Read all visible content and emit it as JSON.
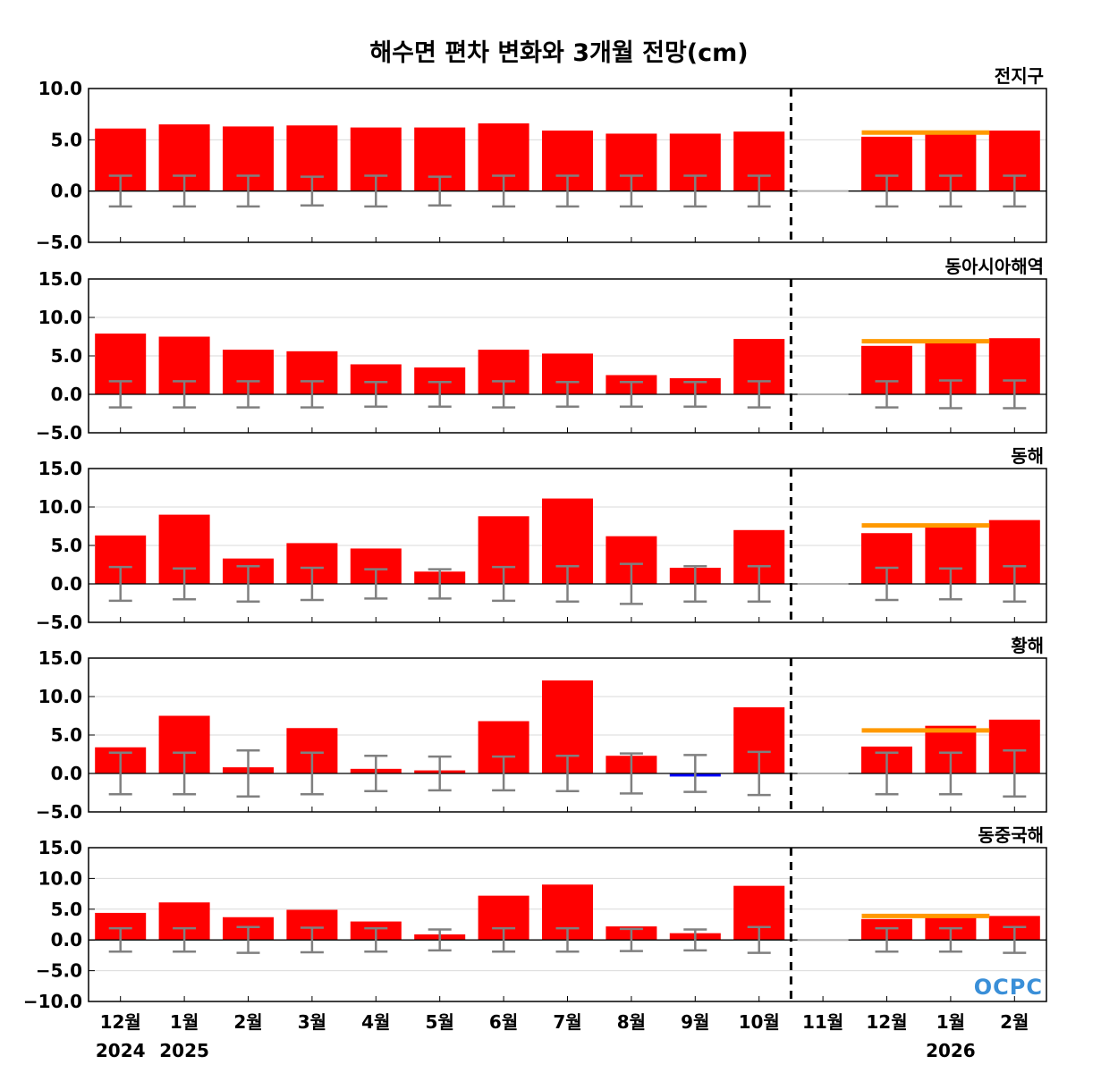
{
  "chart_data": {
    "type": "bar",
    "title": "해수면 편차 변화와 3개월 전망(cm)",
    "months": [
      "12월",
      "1월",
      "2월",
      "3월",
      "4월",
      "5월",
      "6월",
      "7월",
      "8월",
      "9월",
      "10월",
      "11월",
      "12월",
      "1월",
      "2월"
    ],
    "year_labels": [
      {
        "index": 0,
        "label": "2024"
      },
      {
        "index": 1,
        "label": "2025"
      },
      {
        "index": 13,
        "label": "2026"
      }
    ],
    "divider_index": 11,
    "colors": {
      "positive": "#ff0000",
      "negative": "#0000ff",
      "outlook": "#ff9900",
      "errorbar": "#808080",
      "divider": "#000000",
      "grid": "#d9d9d9"
    },
    "panels": [
      {
        "region": "전지구",
        "ylim": [
          -5,
          10
        ],
        "yticks": [
          "10.0",
          "5.0",
          "0.0",
          "−5.0"
        ],
        "ytick_values": [
          10,
          5,
          0,
          -5
        ],
        "values": [
          6.1,
          6.5,
          6.3,
          6.4,
          6.2,
          6.2,
          6.6,
          5.9,
          5.6,
          5.6,
          5.8,
          null,
          5.3,
          5.8,
          5.9
        ],
        "err": [
          1.5,
          1.5,
          1.5,
          1.4,
          1.5,
          1.4,
          1.5,
          1.5,
          1.5,
          1.5,
          1.5,
          null,
          1.5,
          1.5,
          1.5
        ],
        "outlook": 5.7
      },
      {
        "region": "동아시아해역",
        "ylim": [
          -5,
          15
        ],
        "yticks": [
          "15.0",
          "10.0",
          "5.0",
          "0.0",
          "−5.0"
        ],
        "ytick_values": [
          15,
          10,
          5,
          0,
          -5
        ],
        "values": [
          7.9,
          7.5,
          5.8,
          5.6,
          3.9,
          3.5,
          5.8,
          5.3,
          2.5,
          2.1,
          7.2,
          null,
          6.3,
          7.0,
          7.3
        ],
        "err": [
          1.7,
          1.7,
          1.7,
          1.7,
          1.6,
          1.6,
          1.7,
          1.6,
          1.6,
          1.6,
          1.7,
          null,
          1.7,
          1.8,
          1.8
        ],
        "outlook": 6.9
      },
      {
        "region": "동해",
        "ylim": [
          -5,
          15
        ],
        "yticks": [
          "15.0",
          "10.0",
          "5.0",
          "0.0",
          "−5.0"
        ],
        "ytick_values": [
          15,
          10,
          5,
          0,
          -5
        ],
        "values": [
          6.3,
          9.0,
          3.3,
          5.3,
          4.6,
          1.6,
          8.8,
          11.1,
          6.2,
          2.1,
          7.0,
          null,
          6.6,
          7.4,
          8.3
        ],
        "err": [
          2.2,
          2.0,
          2.3,
          2.1,
          1.9,
          1.9,
          2.2,
          2.3,
          2.6,
          2.3,
          2.3,
          null,
          2.1,
          2.0,
          2.3
        ],
        "outlook": 7.6
      },
      {
        "region": "황해",
        "ylim": [
          -5,
          15
        ],
        "yticks": [
          "15.0",
          "10.0",
          "5.0",
          "0.0",
          "−5.0"
        ],
        "ytick_values": [
          15,
          10,
          5,
          0,
          -5
        ],
        "values": [
          3.4,
          7.5,
          0.8,
          5.9,
          0.6,
          0.4,
          6.8,
          12.1,
          2.3,
          -0.4,
          8.6,
          null,
          3.5,
          6.2,
          7.0
        ],
        "err": [
          2.7,
          2.7,
          3.0,
          2.7,
          2.3,
          2.2,
          2.2,
          2.3,
          2.6,
          2.4,
          2.8,
          null,
          2.7,
          2.7,
          3.0
        ],
        "outlook": 5.6
      },
      {
        "region": "동중국해",
        "ylim": [
          -10,
          15
        ],
        "yticks": [
          "15.0",
          "10.0",
          "5.0",
          "0.0",
          "−5.0",
          "−10.0"
        ],
        "ytick_values": [
          15,
          10,
          5,
          0,
          -5,
          -10
        ],
        "values": [
          4.4,
          6.1,
          3.7,
          4.9,
          3.0,
          0.9,
          7.2,
          9.0,
          2.2,
          1.1,
          8.8,
          null,
          3.4,
          3.9,
          3.9
        ],
        "err": [
          1.9,
          1.9,
          2.1,
          2.0,
          1.9,
          1.7,
          1.9,
          1.9,
          1.8,
          1.7,
          2.1,
          null,
          1.9,
          1.9,
          2.1
        ],
        "outlook": 3.9
      }
    ],
    "logo": "OCPC"
  }
}
